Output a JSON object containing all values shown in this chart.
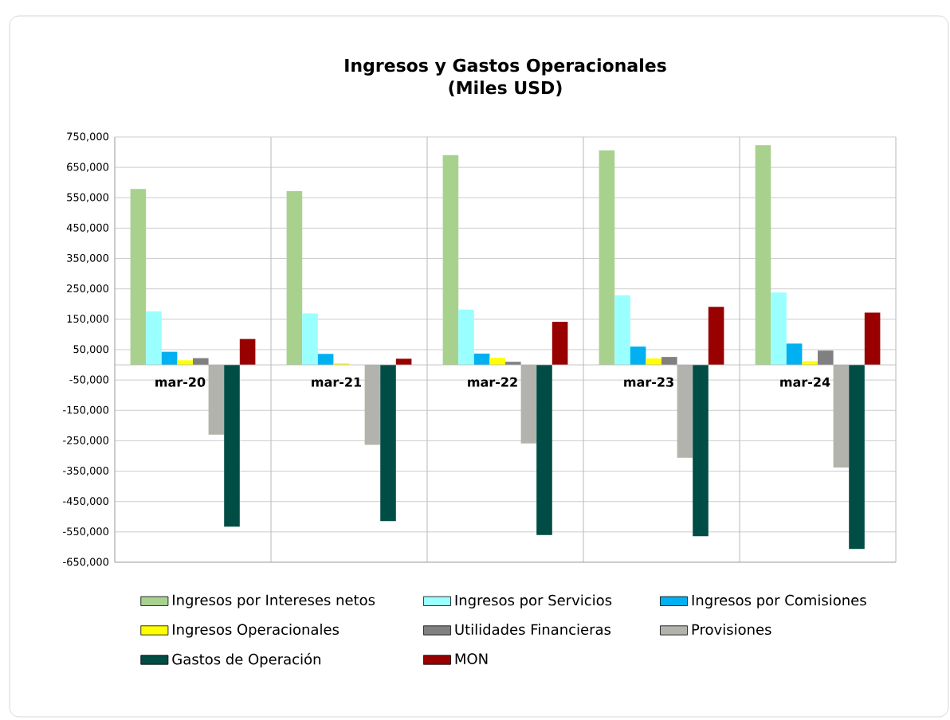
{
  "chart_data": {
    "type": "bar",
    "title": "Ingresos y Gastos Operacionales",
    "subtitle": "(Miles USD)",
    "categories": [
      "mar-20",
      "mar-21",
      "mar-22",
      "mar-23",
      "mar-24"
    ],
    "series": [
      {
        "name": "Ingresos por Intereses netos",
        "color": "#a9d18e",
        "values": [
          579000,
          572000,
          690000,
          706000,
          723000
        ]
      },
      {
        "name": "Ingresos por Servicios",
        "color": "#99ffff",
        "values": [
          176000,
          169000,
          182000,
          229000,
          238000
        ]
      },
      {
        "name": "Ingresos por Comisiones",
        "color": "#00b0f0",
        "values": [
          43000,
          36000,
          37000,
          60000,
          70000
        ]
      },
      {
        "name": "Ingresos Operacionales",
        "color": "#ffff00",
        "values": [
          15000,
          5000,
          23000,
          21000,
          12000
        ]
      },
      {
        "name": "Utilidades Financieras",
        "color": "#808080",
        "values": [
          22000,
          null,
          10000,
          26000,
          47000
        ]
      },
      {
        "name": "Provisiones",
        "color": "#b3b3ad",
        "values": [
          -230000,
          -263000,
          -259000,
          -306000,
          -338000
        ]
      },
      {
        "name": "Gastos de Operación",
        "color": "#004d45",
        "values": [
          -533000,
          -514000,
          -560000,
          -564000,
          -606000
        ]
      },
      {
        "name": "MON",
        "color": "#990000",
        "values": [
          85000,
          20000,
          142000,
          191000,
          172000
        ]
      }
    ],
    "ylim": [
      -650000,
      750000
    ],
    "yticks": [
      {
        "value": -650000,
        "label": "-650,000"
      },
      {
        "value": -550000,
        "label": "-550,000"
      },
      {
        "value": -450000,
        "label": "-450,000"
      },
      {
        "value": -350000,
        "label": "-350,000"
      },
      {
        "value": -250000,
        "label": "-250,000"
      },
      {
        "value": -150000,
        "label": "-150,000"
      },
      {
        "value": -50000,
        "label": "-50,000"
      },
      {
        "value": 50000,
        "label": "50,000"
      },
      {
        "value": 150000,
        "label": "150,000"
      },
      {
        "value": 250000,
        "label": "250,000"
      },
      {
        "value": 350000,
        "label": "350,000"
      },
      {
        "value": 450000,
        "label": "450,000"
      },
      {
        "value": 550000,
        "label": "550,000"
      },
      {
        "value": 650000,
        "label": "650,000"
      },
      {
        "value": 750000,
        "label": "750,000"
      }
    ],
    "grid": true,
    "legend": "bottom"
  }
}
